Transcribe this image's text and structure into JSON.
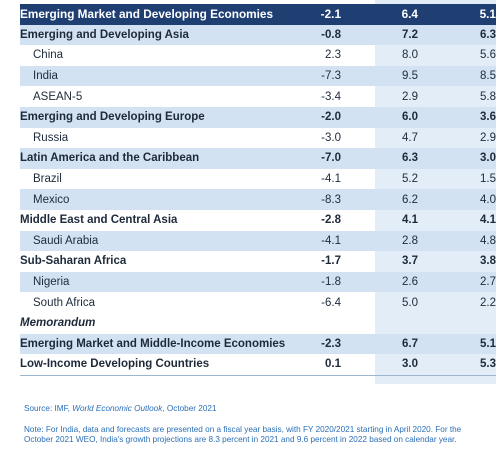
{
  "table": {
    "rows": [
      {
        "name": "Emerging Market and Developing Economies",
        "v1": "-2.1",
        "v2": "6.4",
        "v3": "5.1",
        "style": "header"
      },
      {
        "name": "Emerging and Developing Asia",
        "v1": "-0.8",
        "v2": "7.2",
        "v3": "6.3",
        "style": "shaded bold"
      },
      {
        "name": "China",
        "v1": "2.3",
        "v2": "8.0",
        "v3": "5.6",
        "style": "plain sub"
      },
      {
        "name": "India",
        "v1": "-7.3",
        "v2": "9.5",
        "v3": "8.5",
        "style": "shaded sub"
      },
      {
        "name": "ASEAN-5",
        "v1": "-3.4",
        "v2": "2.9",
        "v3": "5.8",
        "style": "plain sub"
      },
      {
        "name": "Emerging and Developing Europe",
        "v1": "-2.0",
        "v2": "6.0",
        "v3": "3.6",
        "style": "shaded bold"
      },
      {
        "name": "Russia",
        "v1": "-3.0",
        "v2": "4.7",
        "v3": "2.9",
        "style": "plain sub"
      },
      {
        "name": "Latin America and the Caribbean",
        "v1": "-7.0",
        "v2": "6.3",
        "v3": "3.0",
        "style": "shaded bold"
      },
      {
        "name": "Brazil",
        "v1": "-4.1",
        "v2": "5.2",
        "v3": "1.5",
        "style": "plain sub"
      },
      {
        "name": "Mexico",
        "v1": "-8.3",
        "v2": "6.2",
        "v3": "4.0",
        "style": "shaded sub"
      },
      {
        "name": "Middle East and Central Asia",
        "v1": "-2.8",
        "v2": "4.1",
        "v3": "4.1",
        "style": "plain bold"
      },
      {
        "name": "Saudi Arabia",
        "v1": "-4.1",
        "v2": "2.8",
        "v3": "4.8",
        "style": "shaded sub"
      },
      {
        "name": "Sub-Saharan Africa",
        "v1": "-1.7",
        "v2": "3.7",
        "v3": "3.8",
        "style": "plain bold"
      },
      {
        "name": "Nigeria",
        "v1": "-1.8",
        "v2": "2.6",
        "v3": "2.7",
        "style": "shaded sub"
      },
      {
        "name": "South Africa",
        "v1": "-6.4",
        "v2": "5.0",
        "v3": "2.2",
        "style": "plain sub"
      },
      {
        "name": "Memorandum",
        "v1": "",
        "v2": "",
        "v3": "",
        "style": "plain italic"
      },
      {
        "name": "Emerging Market and Middle-Income Economies",
        "v1": "-2.3",
        "v2": "6.7",
        "v3": "5.1",
        "style": "shaded bold"
      },
      {
        "name": "Low-Income Developing Countries",
        "v1": "0.1",
        "v2": "3.0",
        "v3": "5.3",
        "style": "plain bold line"
      }
    ]
  },
  "source": {
    "prefix": "Source: IMF, ",
    "italic": "World Economic Outlook",
    "suffix": ", October 2021"
  },
  "note": "Note: For India, data and forecasts are presented on a fiscal year basis, with FY 2020/2021 starting in April 2020. For the October 2021 WEO, India's growth projections are 8.3 percent in 2021 and 9.6 percent in 2022 based on calendar year."
}
